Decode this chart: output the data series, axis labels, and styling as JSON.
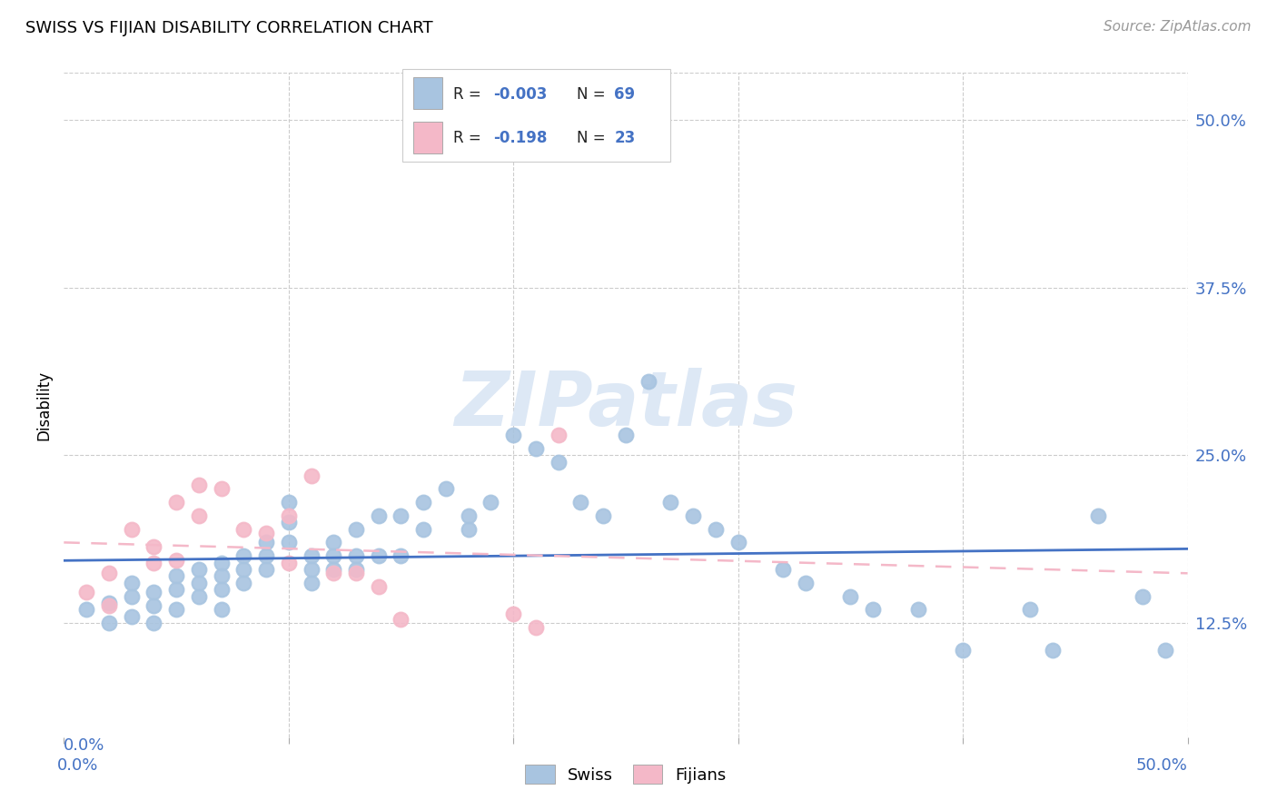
{
  "title": "SWISS VS FIJIAN DISABILITY CORRELATION CHART",
  "source": "Source: ZipAtlas.com",
  "ylabel": "Disability",
  "y_tick_labels": [
    "12.5%",
    "25.0%",
    "37.5%",
    "50.0%"
  ],
  "y_tick_values": [
    0.125,
    0.25,
    0.375,
    0.5
  ],
  "x_range": [
    0.0,
    0.5
  ],
  "y_range": [
    0.04,
    0.535
  ],
  "swiss_color": "#a8c4e0",
  "fijian_color": "#f4b8c8",
  "trend_swiss_color": "#4472c4",
  "trend_fijian_color": "#f4b8c8",
  "background_color": "#ffffff",
  "swiss_x": [
    0.01,
    0.02,
    0.02,
    0.03,
    0.03,
    0.03,
    0.04,
    0.04,
    0.04,
    0.05,
    0.05,
    0.05,
    0.06,
    0.06,
    0.06,
    0.07,
    0.07,
    0.07,
    0.07,
    0.08,
    0.08,
    0.08,
    0.09,
    0.09,
    0.09,
    0.1,
    0.1,
    0.1,
    0.11,
    0.11,
    0.11,
    0.12,
    0.12,
    0.12,
    0.13,
    0.13,
    0.13,
    0.14,
    0.14,
    0.15,
    0.15,
    0.16,
    0.16,
    0.17,
    0.18,
    0.18,
    0.19,
    0.2,
    0.21,
    0.22,
    0.23,
    0.24,
    0.25,
    0.26,
    0.27,
    0.28,
    0.29,
    0.3,
    0.32,
    0.33,
    0.35,
    0.36,
    0.38,
    0.4,
    0.43,
    0.44,
    0.46,
    0.48,
    0.49
  ],
  "swiss_y": [
    0.135,
    0.14,
    0.125,
    0.155,
    0.145,
    0.13,
    0.148,
    0.138,
    0.125,
    0.16,
    0.15,
    0.135,
    0.165,
    0.155,
    0.145,
    0.17,
    0.16,
    0.15,
    0.135,
    0.175,
    0.165,
    0.155,
    0.185,
    0.175,
    0.165,
    0.215,
    0.2,
    0.185,
    0.175,
    0.165,
    0.155,
    0.185,
    0.175,
    0.165,
    0.195,
    0.175,
    0.165,
    0.205,
    0.175,
    0.205,
    0.175,
    0.215,
    0.195,
    0.225,
    0.205,
    0.195,
    0.215,
    0.265,
    0.255,
    0.245,
    0.215,
    0.205,
    0.265,
    0.305,
    0.215,
    0.205,
    0.195,
    0.185,
    0.165,
    0.155,
    0.145,
    0.135,
    0.135,
    0.105,
    0.135,
    0.105,
    0.205,
    0.145,
    0.105
  ],
  "fijian_x": [
    0.01,
    0.02,
    0.02,
    0.03,
    0.04,
    0.04,
    0.05,
    0.05,
    0.06,
    0.06,
    0.07,
    0.08,
    0.09,
    0.1,
    0.1,
    0.11,
    0.12,
    0.13,
    0.14,
    0.15,
    0.2,
    0.21,
    0.22
  ],
  "fijian_y": [
    0.148,
    0.162,
    0.138,
    0.195,
    0.182,
    0.17,
    0.215,
    0.172,
    0.228,
    0.205,
    0.225,
    0.195,
    0.192,
    0.205,
    0.17,
    0.235,
    0.162,
    0.162,
    0.152,
    0.128,
    0.132,
    0.122,
    0.265
  ]
}
